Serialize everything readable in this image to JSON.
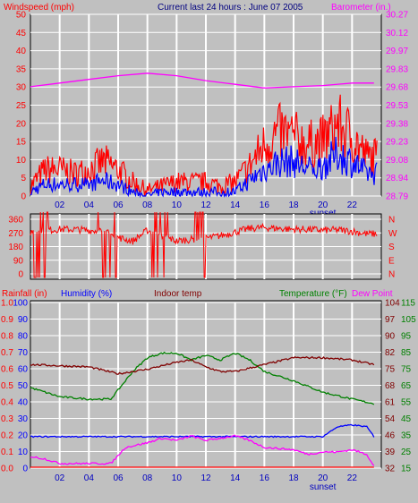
{
  "header": {
    "windspeed_label": "Windspeed (mph)",
    "title": "Current last 24 hours : June 07 2005",
    "barometer_label": "Barometer (in.)"
  },
  "legend2": {
    "rainfall": "Rainfall (in)",
    "humidity": "Humidity (%)",
    "indoor": "Indoor temp",
    "temperature": "Temperature (°F)",
    "dewpoint": "Dew Point"
  },
  "sunset_label": "sunset",
  "colors": {
    "wind_gust": "#ff0000",
    "wind_avg": "#0000ff",
    "barometer": "#ff00ff",
    "direction": "#ff0000",
    "temperature": "#008000",
    "indoor": "#800000",
    "humidity": "#0000ff",
    "dewpoint": "#ff00ff",
    "rainfall": "#ff0000",
    "panel_bg": "#c0c0c0",
    "grid": "#ffffff"
  },
  "chart_data": [
    {
      "type": "line",
      "name": "wind-barometer",
      "x_ticks": [
        "02",
        "04",
        "06",
        "08",
        "10",
        "12",
        "14",
        "16",
        "18",
        "20",
        "22"
      ],
      "sunset_at": "20",
      "y_left": {
        "label": "Windspeed (mph)",
        "ticks": [
          0,
          5,
          10,
          15,
          20,
          25,
          30,
          35,
          40,
          45,
          50
        ],
        "range": [
          0,
          50
        ]
      },
      "y_right": {
        "label": "Barometer (in.)",
        "ticks": [
          "28.79",
          "28.94",
          "29.08",
          "29.23",
          "29.38",
          "29.53",
          "29.68",
          "29.83",
          "29.97",
          "30.12",
          "30.27"
        ],
        "range": [
          28.79,
          30.27
        ]
      },
      "series": [
        {
          "name": "Barometer",
          "x": [
            0,
            2,
            4,
            6,
            8,
            10,
            12,
            14,
            16,
            18,
            20,
            22,
            23.5
          ],
          "values": [
            29.68,
            29.71,
            29.74,
            29.77,
            29.79,
            29.77,
            29.73,
            29.7,
            29.67,
            29.68,
            29.69,
            29.71,
            29.71
          ]
        }
      ],
      "wind_profile": {
        "x": [
          0,
          1,
          2,
          3,
          4,
          5,
          6,
          7,
          8,
          9,
          10,
          11,
          12,
          13,
          14,
          15,
          16,
          17,
          18,
          19,
          20,
          21,
          22,
          23
        ],
        "gust_base": [
          2,
          6,
          6,
          5,
          6,
          8,
          6,
          3,
          1,
          2,
          3,
          3,
          3,
          2,
          3,
          7,
          12,
          15,
          14,
          12,
          13,
          17,
          14,
          9
        ],
        "avg_base": [
          1,
          3,
          3,
          3,
          3,
          4,
          3,
          1,
          0,
          1,
          1,
          1,
          1,
          1,
          1,
          4,
          7,
          9,
          9,
          7,
          8,
          11,
          9,
          6
        ]
      }
    },
    {
      "type": "scatter",
      "name": "wind-direction",
      "x_ticks": [],
      "y_left": {
        "ticks": [
          360,
          270,
          180,
          90,
          0
        ]
      },
      "y_right": {
        "ticks": [
          "N",
          "W",
          "S",
          "E",
          "N"
        ]
      },
      "direction_profile": {
        "x": [
          0,
          1,
          2,
          3,
          4,
          5,
          6,
          7,
          8,
          9,
          10,
          11,
          12,
          13,
          14,
          15,
          16,
          17,
          18,
          19,
          20,
          21,
          22,
          23
        ],
        "values": [
          250,
          260,
          265,
          265,
          260,
          255,
          220,
          200,
          260,
          230,
          200,
          210,
          215,
          230,
          250,
          270,
          275,
          270,
          265,
          265,
          260,
          262,
          255,
          240
        ]
      }
    },
    {
      "type": "line",
      "name": "temp-humidity",
      "x_ticks": [
        "02",
        "04",
        "06",
        "08",
        "10",
        "12",
        "14",
        "16",
        "18",
        "20",
        "22"
      ],
      "sunset_at": "20",
      "y_rain": {
        "label": "Rainfall (in)",
        "ticks": [
          "0.0",
          "0.1",
          "0.2",
          "0.3",
          "0.4",
          "0.5",
          "0.6",
          "0.7",
          "0.8",
          "0.9",
          "1.0"
        ]
      },
      "y_humidity": {
        "label": "Humidity (%)",
        "ticks": [
          0,
          10,
          20,
          30,
          40,
          50,
          60,
          70,
          80,
          90,
          100
        ]
      },
      "y_temp_inner": {
        "ticks": [
          32,
          39,
          46,
          54,
          61,
          68,
          75,
          82,
          90,
          97,
          104
        ]
      },
      "y_temp_outer": {
        "ticks": [
          15,
          25,
          35,
          45,
          55,
          65,
          75,
          85,
          95,
          105,
          115
        ]
      },
      "series": [
        {
          "name": "Temperature",
          "x": [
            0,
            2,
            4,
            5.5,
            7,
            8,
            9,
            10,
            11,
            12,
            13,
            14,
            15,
            16,
            18,
            20,
            22,
            23.5
          ],
          "values": [
            67,
            63,
            62,
            62,
            74,
            80,
            82,
            82,
            79,
            81,
            79,
            82,
            79,
            74,
            70,
            65,
            62,
            60
          ]
        },
        {
          "name": "Indoor temp",
          "x": [
            0,
            4,
            6,
            8,
            10,
            11,
            12,
            13,
            14,
            16,
            18,
            20,
            22,
            23.5
          ],
          "values": [
            77,
            76,
            73,
            75,
            78,
            79,
            76,
            74,
            74,
            77,
            80,
            80,
            79,
            77
          ]
        },
        {
          "name": "Humidity",
          "x": [
            0,
            2,
            4,
            6,
            8,
            10,
            12,
            14,
            16,
            18,
            20,
            21,
            22,
            23,
            23.5
          ],
          "values": [
            19,
            19,
            19,
            19,
            19,
            19,
            19,
            19,
            19,
            19,
            19,
            25,
            26,
            25,
            19
          ]
        },
        {
          "name": "Dew Point",
          "x": [
            0,
            1,
            2,
            4,
            5.5,
            6.5,
            8,
            9,
            10,
            11,
            12,
            13,
            14,
            15,
            16,
            18,
            19,
            20,
            21,
            22,
            23,
            23.5
          ],
          "values": [
            37,
            36,
            34,
            34,
            34,
            41,
            43,
            45,
            44,
            46,
            44,
            45,
            46,
            44,
            41,
            40,
            38,
            39,
            39,
            40,
            38,
            33
          ]
        },
        {
          "name": "Rainfall",
          "x": [
            0,
            23.5
          ],
          "values": [
            0,
            0
          ]
        }
      ]
    }
  ]
}
